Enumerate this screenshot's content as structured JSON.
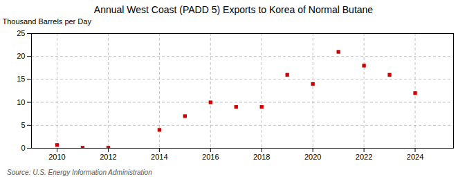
{
  "chart_data": {
    "type": "scatter",
    "title": "Annual West Coast (PADD 5) Exports to Korea of Normal Butane",
    "ylabel": "Thousand Barrels per Day",
    "source": "Source: U.S. Energy Information Administration",
    "x": [
      2010,
      2011,
      2012,
      2014,
      2015,
      2016,
      2017,
      2018,
      2019,
      2020,
      2021,
      2022,
      2023,
      2024
    ],
    "values": [
      0.7,
      0.1,
      0.1,
      4.0,
      7.0,
      10.0,
      9.0,
      9.0,
      16.0,
      14.0,
      21.0,
      18.0,
      16.0,
      12.0
    ],
    "color": "#cc0000",
    "marker": "square",
    "xlim": [
      2009.0,
      2025.5
    ],
    "xticks": [
      2010,
      2012,
      2014,
      2016,
      2018,
      2020,
      2022,
      2024
    ],
    "ylim": [
      0,
      25
    ],
    "yticks": [
      0,
      5,
      10,
      15,
      20,
      25
    ],
    "grid": true
  }
}
